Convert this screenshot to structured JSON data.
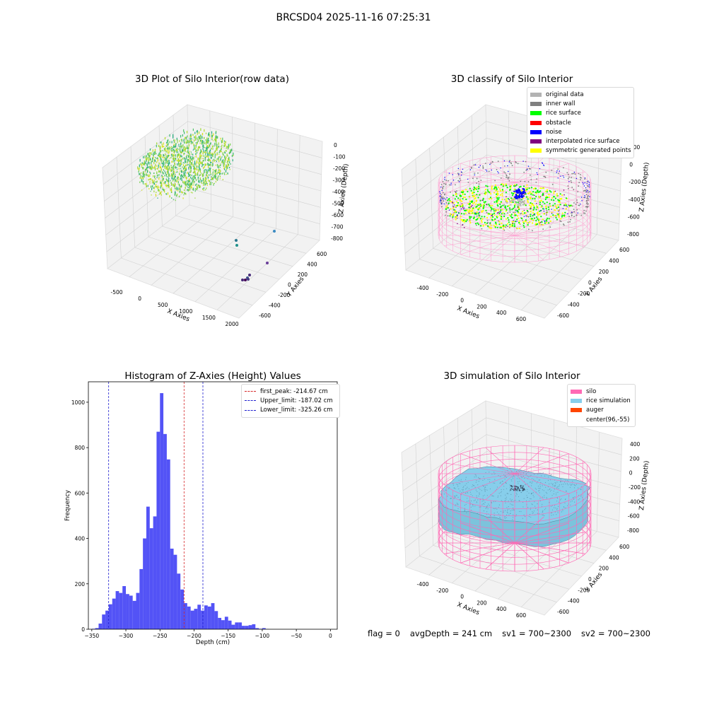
{
  "suptitle": "BRCSD04 2025-11-16 07:25:31",
  "footer": {
    "flag": "flag = 0",
    "avg_depth": "avgDepth = 241 cm",
    "sv1": "sv1 = 700~2300",
    "sv2": "sv2 = 700~2300"
  },
  "colors": {
    "histogram_bar": "#4a4af5",
    "peak_line": "#d62728",
    "limit_line": "#1f1fcf",
    "silo_wire": "#ff69b4",
    "rice_sim": "#87ceeb",
    "auger": "#ff4500"
  },
  "chart_data": [
    {
      "type": "scatter",
      "title": "3D Plot of Silo Interior(row data)",
      "xlabel": "X Axies",
      "ylabel": "Y Axies",
      "zlabel": "Z Axies (Depth)",
      "x_ticks": [
        "-500",
        "0",
        "500",
        "1000",
        "1500",
        "2000"
      ],
      "y_ticks": [
        "-600",
        "-400",
        "-200",
        "0",
        "200",
        "400",
        "600"
      ],
      "z_ticks": [
        "0",
        "-100",
        "-200",
        "-300",
        "-400",
        "-500",
        "-600",
        "-700",
        "-800"
      ],
      "colormap": "viridis"
    },
    {
      "type": "scatter",
      "title": "3D classify of Silo Interior",
      "xlabel": "X Axies",
      "ylabel": "Y Axies",
      "zlabel": "Z Axies (Depth)",
      "x_ticks": [
        "-400",
        "-200",
        "0",
        "200",
        "400",
        "600"
      ],
      "y_ticks": [
        "-600",
        "-400",
        "-200",
        "0",
        "200",
        "400",
        "600"
      ],
      "z_ticks": [
        "200",
        "0",
        "-200",
        "-400",
        "-600",
        "-800"
      ],
      "legend_position": "top-right",
      "legend": [
        {
          "label": "original data",
          "color": "#b3b3b3"
        },
        {
          "label": "inner wall",
          "color": "#808080"
        },
        {
          "label": "rice surface",
          "color": "#00ff00"
        },
        {
          "label": "obstacle",
          "color": "#ff0000"
        },
        {
          "label": "noise",
          "color": "#0000ff"
        },
        {
          "label": "interpolated rice surface",
          "color": "#800080"
        },
        {
          "label": "symmetric generated points",
          "color": "#ffff00"
        }
      ]
    },
    {
      "type": "bar",
      "title": "Histogram of Z-Axies (Height) Values",
      "xlabel": "Depth (cm)",
      "ylabel": "Frequency",
      "xlim": [
        -355,
        10
      ],
      "ylim": [
        0,
        1090
      ],
      "x_ticks": [
        -350,
        -300,
        -250,
        -200,
        -150,
        -100,
        -50,
        0
      ],
      "y_ticks": [
        0,
        200,
        400,
        600,
        800,
        1000
      ],
      "bin_start": -350,
      "bin_width": 5,
      "values": [
        2,
        5,
        25,
        65,
        82,
        110,
        135,
        168,
        160,
        190,
        155,
        148,
        125,
        160,
        265,
        400,
        540,
        445,
        497,
        870,
        1040,
        860,
        748,
        355,
        328,
        245,
        175,
        115,
        100,
        82,
        90,
        108,
        82,
        105,
        100,
        115,
        80,
        50,
        40,
        55,
        38,
        20,
        30,
        30,
        15,
        15,
        18,
        22,
        5,
        2,
        5,
        1
      ],
      "vlines": [
        {
          "name": "first_peak: -214.67 cm",
          "x": -214.67,
          "color": "#d62728"
        },
        {
          "name": "Upper_limit: -187.02 cm",
          "x": -187.02,
          "color": "#1f1fcf"
        },
        {
          "name": "Lower_limit: -325.26 cm",
          "x": -325.26,
          "color": "#1f1fcf"
        }
      ],
      "legend_position": "top-right"
    },
    {
      "type": "area",
      "title": "3D simulation of Silo Interior",
      "xlabel": "X Axies",
      "ylabel": "Y Axies",
      "zlabel": "Z Axies (Depth)",
      "x_ticks": [
        "-400",
        "-200",
        "0",
        "200",
        "400",
        "600"
      ],
      "y_ticks": [
        "-600",
        "-400",
        "-200",
        "0",
        "200",
        "400",
        "600"
      ],
      "z_ticks": [
        "400",
        "200",
        "0",
        "-200",
        "-400",
        "-600",
        "-800"
      ],
      "legend_position": "top-right",
      "legend": [
        {
          "label": "silo",
          "color": "#ff69b4"
        },
        {
          "label": "rice simulation",
          "color": "#87ceeb"
        },
        {
          "label": "auger",
          "color": "#ff4500"
        },
        {
          "label": "center(96,-55)",
          "color": ""
        }
      ]
    }
  ]
}
